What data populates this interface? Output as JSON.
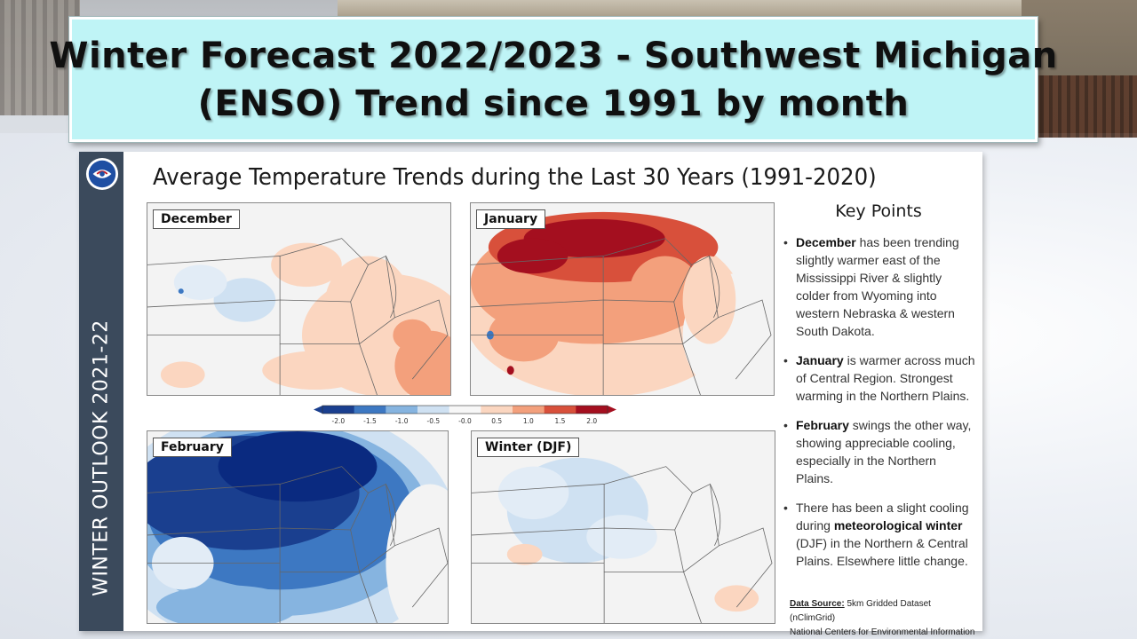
{
  "title": {
    "line1": "Winter Forecast 2022/2023 - Southwest Michigan",
    "line2": "(ENSO)  Trend since 1991 by month"
  },
  "sidebar": {
    "text": "WINTER OUTLOOK 2021-22"
  },
  "slide": {
    "title": "Average Temperature Trends during the Last 30 Years (1991-2020)"
  },
  "maps": [
    {
      "label": "December",
      "tone": "slightly-warm"
    },
    {
      "label": "January",
      "tone": "warm"
    },
    {
      "label": "February",
      "tone": "cold"
    },
    {
      "label": "Winter (DJF)",
      "tone": "neutral"
    }
  ],
  "colorbar": {
    "ticks": [
      "-2.0",
      "-1.5",
      "-1.0",
      "-0.5",
      "-0.0",
      "0.5",
      "1.0",
      "1.5",
      "2.0"
    ],
    "colors": [
      "#1a3f8f",
      "#3d78c2",
      "#86b4e0",
      "#cfe1f2",
      "#f7f7f7",
      "#fbd6c0",
      "#f3a07c",
      "#d8503b",
      "#a40f1f"
    ]
  },
  "key_points": {
    "title": "Key Points",
    "items": [
      {
        "bold": "December",
        "text": " has been trending slightly warmer east of the Mississippi River & slightly colder from Wyoming into western Nebraska & western South Dakota."
      },
      {
        "bold": "January",
        "text": " is  warmer across much of Central Region. Strongest warming in the Northern Plains."
      },
      {
        "bold": "February",
        "text": " swings the other way, showing appreciable cooling, especially in the Northern Plains."
      },
      {
        "pre": "There has been a slight cooling during ",
        "bold": "meteorological winter",
        "text": " (DJF) in the Northern & Central Plains. Elsewhere little change."
      }
    ]
  },
  "source": {
    "label": "Data Source:",
    "text": " 5km Gridded Dataset (nClimGrid)",
    "org": "National Centers for Environmental Information"
  }
}
